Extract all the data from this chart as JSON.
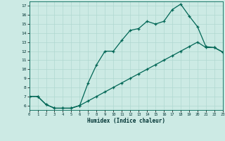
{
  "xlabel": "Humidex (Indice chaleur)",
  "bg_color": "#cceae4",
  "grid_color": "#b0d8d0",
  "line_color": "#006655",
  "line1_x": [
    0,
    1,
    2,
    3,
    4,
    5,
    6,
    7,
    8,
    9,
    10,
    11,
    12,
    13,
    14,
    15,
    16,
    17,
    18,
    19,
    20,
    21,
    22,
    23
  ],
  "line1_y": [
    7.0,
    7.0,
    6.1,
    5.7,
    5.7,
    5.7,
    6.0,
    8.5,
    10.5,
    12.0,
    12.0,
    13.2,
    14.3,
    14.5,
    15.3,
    15.0,
    15.3,
    16.6,
    17.2,
    15.9,
    14.7,
    12.5,
    12.4,
    11.9
  ],
  "line2_x": [
    0,
    1,
    2,
    3,
    4,
    5,
    6,
    7,
    8,
    9,
    10,
    11,
    12,
    13,
    14,
    15,
    16,
    17,
    18,
    19,
    20,
    21,
    22,
    23
  ],
  "line2_y": [
    7.0,
    7.0,
    6.1,
    5.7,
    5.7,
    5.7,
    6.0,
    6.5,
    7.0,
    7.5,
    8.0,
    8.5,
    9.0,
    9.5,
    10.0,
    10.5,
    11.0,
    11.5,
    12.0,
    12.5,
    13.0,
    12.4,
    12.4,
    11.9
  ],
  "ylim": [
    5.5,
    17.5
  ],
  "xlim": [
    0,
    23
  ],
  "yticks": [
    6,
    7,
    8,
    9,
    10,
    11,
    12,
    13,
    14,
    15,
    16,
    17
  ],
  "xticks": [
    0,
    1,
    2,
    3,
    4,
    5,
    6,
    7,
    8,
    9,
    10,
    11,
    12,
    13,
    14,
    15,
    16,
    17,
    18,
    19,
    20,
    21,
    22,
    23
  ]
}
